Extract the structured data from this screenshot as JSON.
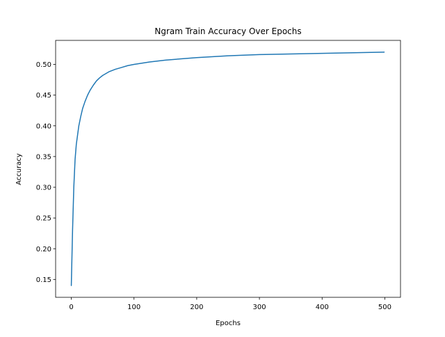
{
  "chart_data": {
    "type": "line",
    "title": "Ngram Train Accuracy Over Epochs",
    "xlabel": "Epochs",
    "ylabel": "Accuracy",
    "xlim": [
      -25,
      525
    ],
    "ylim": [
      0.1209,
      0.5391
    ],
    "xticks": [
      0,
      100,
      200,
      300,
      400,
      500
    ],
    "yticks": [
      0.15,
      0.2,
      0.25,
      0.3,
      0.35,
      0.4,
      0.45,
      0.5
    ],
    "xtick_labels": [
      "0",
      "100",
      "200",
      "300",
      "400",
      "500"
    ],
    "ytick_labels": [
      "0.15",
      "0.20",
      "0.25",
      "0.30",
      "0.35",
      "0.40",
      "0.45",
      "0.50"
    ],
    "grid": false,
    "legend": "none",
    "series": [
      {
        "color": "#1f77b4",
        "x": [
          0,
          2,
          4,
          6,
          8,
          10,
          12,
          15,
          18,
          22,
          26,
          30,
          35,
          40,
          45,
          50,
          60,
          70,
          80,
          90,
          100,
          125,
          150,
          175,
          200,
          250,
          300,
          350,
          400,
          450,
          499
        ],
        "y": [
          0.14,
          0.23,
          0.3,
          0.345,
          0.37,
          0.385,
          0.4,
          0.415,
          0.428,
          0.44,
          0.45,
          0.458,
          0.466,
          0.473,
          0.478,
          0.482,
          0.488,
          0.492,
          0.495,
          0.498,
          0.5,
          0.504,
          0.507,
          0.509,
          0.511,
          0.514,
          0.516,
          0.517,
          0.518,
          0.519,
          0.52
        ]
      }
    ]
  }
}
